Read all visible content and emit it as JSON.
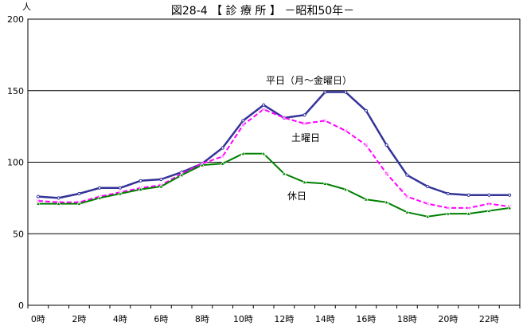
{
  "chart_data": {
    "type": "line",
    "title": "図28-4 【 診 療 所 】 －昭和50年－",
    "ylabel": "人",
    "xlabel": "",
    "ylim": [
      0,
      200
    ],
    "yticks": [
      0,
      50,
      100,
      150,
      200
    ],
    "x": [
      0,
      1,
      2,
      3,
      4,
      5,
      6,
      7,
      8,
      9,
      10,
      11,
      12,
      13,
      14,
      15,
      16,
      17,
      18,
      19,
      20,
      21,
      22,
      23
    ],
    "xtick_labels": [
      "0時",
      "2時",
      "4時",
      "6時",
      "8時",
      "10時",
      "12時",
      "14時",
      "16時",
      "18時",
      "20時",
      "22時"
    ],
    "grid": "horizontal",
    "series": [
      {
        "name": "平日（月～金曜日）",
        "color": "#333399",
        "values": [
          76,
          75,
          78,
          82,
          82,
          87,
          88,
          93,
          99,
          110,
          129,
          140,
          131,
          133,
          149,
          149,
          136,
          112,
          91,
          83,
          78,
          77,
          77,
          77
        ]
      },
      {
        "name": "土曜日",
        "color": "#ff00ff",
        "values": [
          73,
          72,
          72,
          76,
          79,
          82,
          84,
          92,
          99,
          104,
          126,
          137,
          131,
          127,
          129,
          122,
          112,
          92,
          76,
          71,
          68,
          68,
          71,
          69
        ]
      },
      {
        "name": "休日",
        "color": "#008000",
        "values": [
          71,
          71,
          71,
          75,
          78,
          81,
          83,
          91,
          98,
          99,
          106,
          106,
          92,
          86,
          85,
          81,
          74,
          72,
          65,
          62,
          64,
          64,
          66,
          68
        ]
      }
    ]
  }
}
